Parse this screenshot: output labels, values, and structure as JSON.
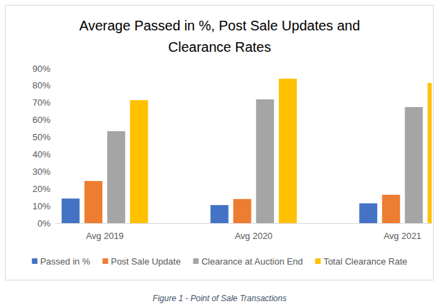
{
  "chart_data": {
    "type": "bar",
    "title": "Average Passed in %, Post Sale Updates and Clearance Rates",
    "caption": "Figure 1 - Point of Sale Transactions",
    "categories": [
      "Avg 2019",
      "Avg 2020",
      "Avg 2021"
    ],
    "series": [
      {
        "name": "Passed in %",
        "color": "#4472c4",
        "values": [
          14.3,
          10.5,
          11.5
        ]
      },
      {
        "name": "Post Sale Update",
        "color": "#ed7d31",
        "values": [
          24.5,
          14,
          16.5
        ]
      },
      {
        "name": "Clearance at Auction End",
        "color": "#a5a5a5",
        "values": [
          53.5,
          72,
          67.5
        ]
      },
      {
        "name": "Total Clearance Rate",
        "color": "#ffc000",
        "values": [
          71.5,
          84,
          81.5
        ]
      }
    ],
    "ylim": [
      0,
      90
    ],
    "yticks": [
      {
        "value": 0,
        "label": "0%"
      },
      {
        "value": 10,
        "label": "10%"
      },
      {
        "value": 20,
        "label": "20%"
      },
      {
        "value": 30,
        "label": "30%"
      },
      {
        "value": 40,
        "label": "40%"
      },
      {
        "value": 50,
        "label": "50%"
      },
      {
        "value": 60,
        "label": "60%"
      },
      {
        "value": 70,
        "label": "70%"
      },
      {
        "value": 80,
        "label": "80%"
      },
      {
        "value": 90,
        "label": "90%"
      }
    ],
    "grid": false,
    "legend": "bottom"
  }
}
